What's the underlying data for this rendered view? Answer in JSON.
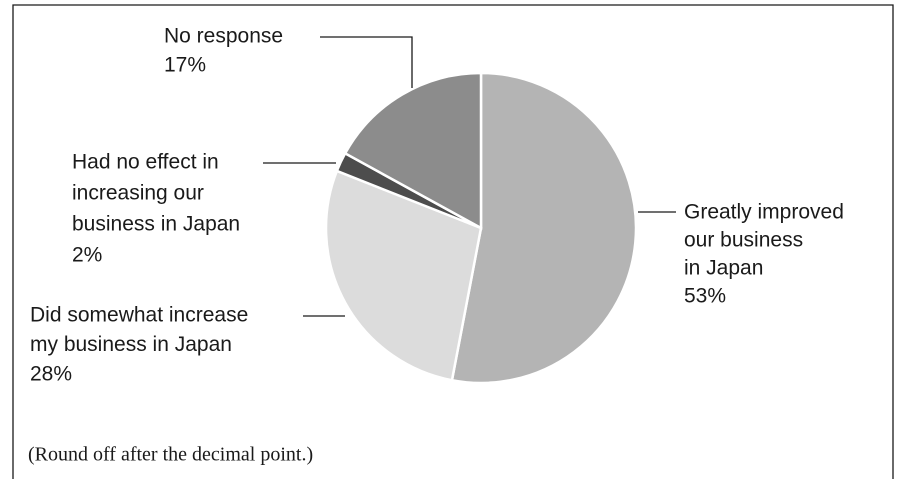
{
  "chart_data": {
    "type": "pie",
    "categories": [
      [
        "Greatly improved",
        "our business",
        "in Japan"
      ],
      [
        "Did somewhat increase",
        "my business in Japan"
      ],
      [
        "Had no effect in",
        "increasing our",
        "business in Japan"
      ],
      [
        "No response"
      ]
    ],
    "values": [
      53,
      28,
      2,
      17
    ],
    "value_labels": [
      "53%",
      "28%",
      "2%",
      "17%"
    ],
    "colors": [
      "#b4b4b4",
      "#dcdcdc",
      "#4d4d4d",
      "#8c8c8c"
    ],
    "note": "(Round off after the decimal point.)"
  }
}
